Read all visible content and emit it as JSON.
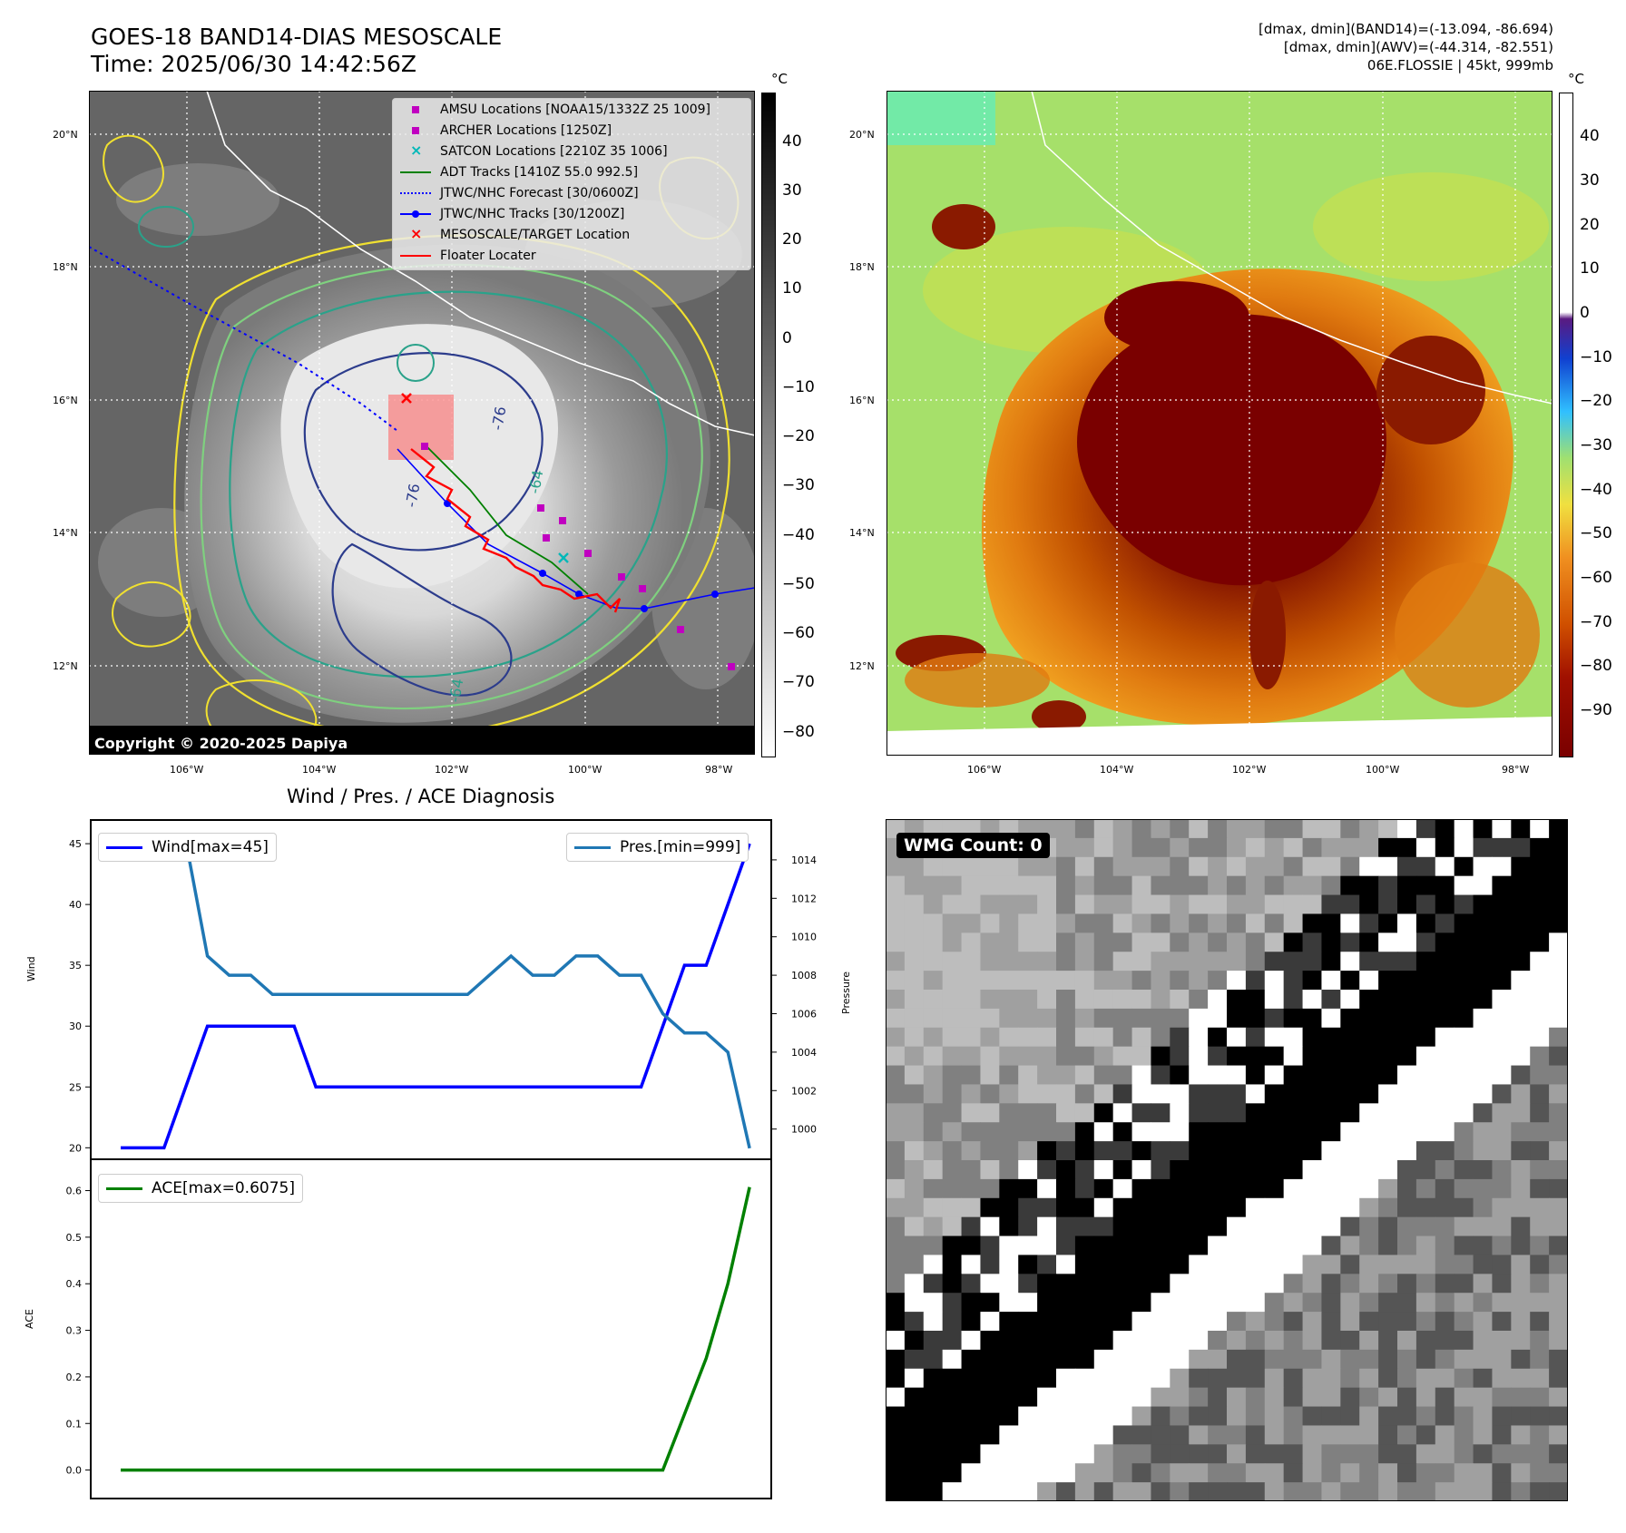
{
  "header": {
    "title_line1": "GOES-18 BAND14-DIAS MESOSCALE",
    "title_line2": "Time: 2025/06/30 14:42:56Z",
    "info_line1": "[dmax, dmin](BAND14)=(-13.094, -86.694)",
    "info_line2": "[dmax, dmin](AWV)=(-44.314, -82.551)",
    "info_line3": "06E.FLOSSIE | 45kt, 999mb"
  },
  "map": {
    "lat_labels": [
      "20°N",
      "18°N",
      "16°N",
      "14°N",
      "12°N"
    ],
    "lon_labels": [
      "106°W",
      "104°W",
      "102°W",
      "100°W",
      "98°W"
    ],
    "colorbar_left": {
      "unit": "°C",
      "ticks": [
        "40",
        "30",
        "20",
        "10",
        "0",
        "−10",
        "−20",
        "−30",
        "−40",
        "−50",
        "−60",
        "−70",
        "−80"
      ]
    },
    "colorbar_right": {
      "unit": "°C",
      "ticks": [
        "40",
        "30",
        "20",
        "10",
        "0",
        "−10",
        "−20",
        "−30",
        "−40",
        "−50",
        "−60",
        "−70",
        "−80",
        "−90"
      ]
    },
    "copyright": "Copyright © 2020-2025 Dapiya",
    "contour_labels": [
      "-64",
      "-76"
    ],
    "legend": [
      {
        "label": "AMSU Locations [NOAA15/1332Z 25 1009]",
        "color": "#c000c0",
        "marker": "square"
      },
      {
        "label": "ARCHER Locations [1250Z]",
        "color": "#c000c0",
        "marker": "square"
      },
      {
        "label": "SATCON Locations [2210Z 35 1006]",
        "color": "#00b8b8",
        "marker": "x"
      },
      {
        "label": "ADT Tracks [1410Z 55.0 992.5]",
        "color": "#008000",
        "marker": "line"
      },
      {
        "label": "JTWC/NHC Forecast [30/0600Z]",
        "color": "#0000ff",
        "marker": "dotted"
      },
      {
        "label": "JTWC/NHC Tracks [30/1200Z]",
        "color": "#0000ff",
        "marker": "line-dot"
      },
      {
        "label": "MESOSCALE/TARGET Location",
        "color": "#ff0000",
        "marker": "x"
      },
      {
        "label": "Floater Locater",
        "color": "#ff0000",
        "marker": "line"
      }
    ]
  },
  "diagnosis": {
    "title": "Wind / Pres. / ACE Diagnosis",
    "wind_legend": "Wind[max=45]",
    "pres_legend": "Pres.[min=999]",
    "ace_legend": "ACE[max=0.6075]",
    "wind_ylabel": "Wind",
    "pres_ylabel": "Pressure",
    "ace_ylabel": "ACE"
  },
  "wmg": {
    "label": "WMG Count: 0"
  },
  "chart_data": [
    {
      "type": "line",
      "name": "wind-pressure",
      "x": [
        0,
        1,
        2,
        3,
        4,
        5,
        6,
        7,
        8,
        9,
        10,
        11,
        12,
        13,
        14,
        15,
        16,
        17,
        18,
        19,
        20,
        21,
        22,
        23,
        24,
        25,
        26,
        27,
        28,
        29
      ],
      "series": [
        {
          "name": "Wind[max=45]",
          "axis": "left",
          "color": "#0000ff",
          "values": [
            20,
            20,
            20,
            25,
            30,
            30,
            30,
            30,
            30,
            25,
            25,
            25,
            25,
            25,
            25,
            25,
            25,
            25,
            25,
            25,
            25,
            25,
            25,
            25,
            25,
            30,
            35,
            35,
            40,
            45
          ]
        },
        {
          "name": "Pres.[min=999]",
          "axis": "right",
          "color": "#1f77b4",
          "values": [
            1015,
            1015,
            1015,
            1015,
            1009,
            1008,
            1008,
            1007,
            1007,
            1007,
            1007,
            1007,
            1007,
            1007,
            1007,
            1007,
            1007,
            1008,
            1009,
            1008,
            1008,
            1009,
            1009,
            1008,
            1008,
            1006,
            1005,
            1005,
            1004,
            999
          ]
        }
      ],
      "ylim_left": [
        19.8,
        46.2
      ],
      "ylim_right": [
        998.9,
        1015.6
      ],
      "yticks_left": [
        "20",
        "25",
        "30",
        "35",
        "40",
        "45"
      ],
      "yticks_right": [
        "1000",
        "1002",
        "1004",
        "1006",
        "1008",
        "1010",
        "1012",
        "1014"
      ],
      "ylabel_left": "Wind",
      "ylabel_right": "Pressure"
    },
    {
      "type": "line",
      "name": "ace",
      "x": [
        0,
        1,
        2,
        3,
        4,
        5,
        6,
        7,
        8,
        9,
        10,
        11,
        12,
        13,
        14,
        15,
        16,
        17,
        18,
        19,
        20,
        21,
        22,
        23,
        24,
        25,
        26,
        27,
        28,
        29
      ],
      "series": [
        {
          "name": "ACE[max=0.6075]",
          "color": "#008000",
          "values": [
            0,
            0,
            0,
            0,
            0,
            0,
            0,
            0,
            0,
            0,
            0,
            0,
            0,
            0,
            0,
            0,
            0,
            0,
            0,
            0,
            0,
            0,
            0,
            0,
            0,
            0,
            0.12,
            0.24,
            0.4,
            0.6075
          ]
        }
      ],
      "ylim": [
        -0.03,
        0.64
      ],
      "yticks": [
        "0.0",
        "0.1",
        "0.2",
        "0.3",
        "0.4",
        "0.5",
        "0.6"
      ],
      "ylabel": "ACE"
    }
  ]
}
